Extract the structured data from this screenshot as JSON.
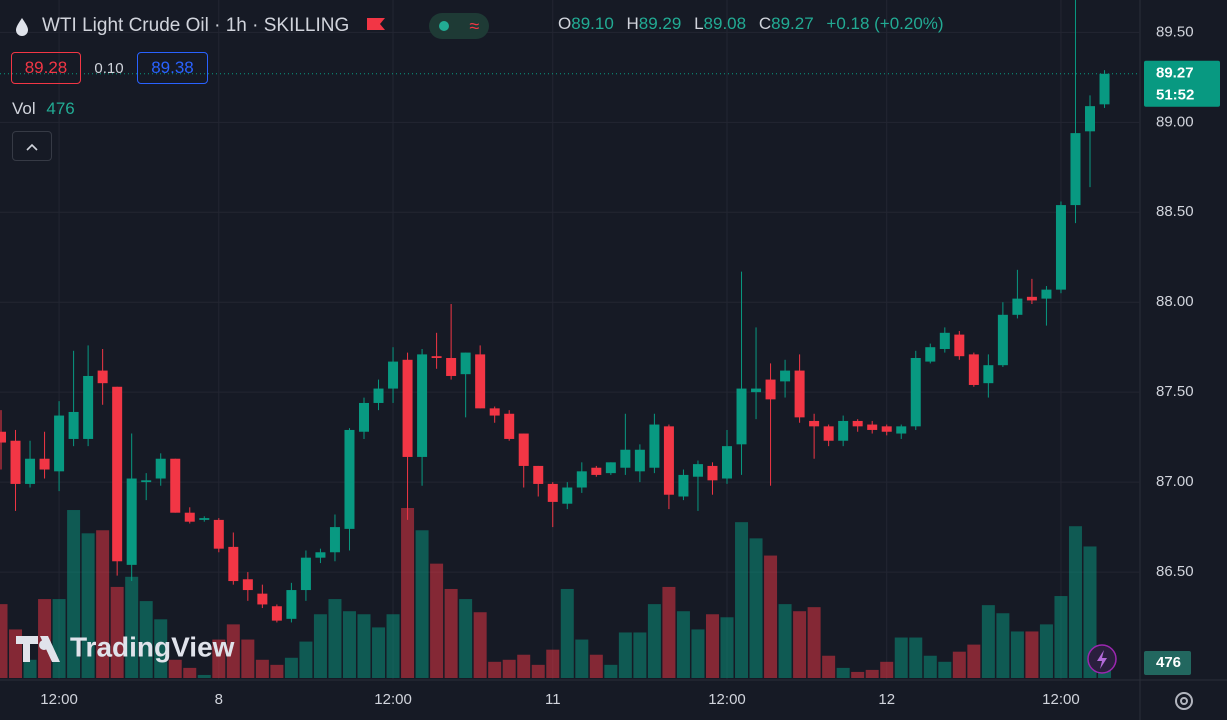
{
  "chart_data": {
    "type": "candlestick",
    "title": "WTI Light Crude Oil · 1h · SKILLING",
    "header": {
      "o_key": "O",
      "o": "89.10",
      "h_key": "H",
      "h": "89.29",
      "l_key": "L",
      "l": "89.08",
      "c_key": "C",
      "c": "89.27",
      "change": "+0.18 (+0.20%)"
    },
    "bid": "89.28",
    "spread": "0.10",
    "ask": "89.38",
    "volume_label": "Vol",
    "countdown": "51:52",
    "watermark": "TradingView",
    "up_color": "#089981",
    "down_color": "#f23645",
    "ylim": [
      85.9,
      89.68
    ],
    "yticks": [
      {
        "value": 86.5,
        "label": "86.50"
      },
      {
        "value": 87,
        "label": "87.00"
      },
      {
        "value": 87.5,
        "label": "87.50"
      },
      {
        "value": 88,
        "label": "88.00"
      },
      {
        "value": 88.5,
        "label": "88.50"
      },
      {
        "value": 89,
        "label": "89.00"
      },
      {
        "value": 89.5,
        "label": "89.50"
      }
    ],
    "grid": true,
    "categories": [
      null,
      null,
      null,
      null,
      "12:00",
      null,
      null,
      null,
      null,
      null,
      null,
      null,
      null,
      null,
      null,
      "8",
      null,
      null,
      null,
      null,
      null,
      null,
      null,
      null,
      null,
      null,
      null,
      "12:00",
      null,
      null,
      null,
      null,
      null,
      null,
      null,
      null,
      null,
      null,
      "11",
      null,
      null,
      null,
      null,
      null,
      null,
      null,
      null,
      null,
      null,
      null,
      "12:00",
      null,
      null,
      null,
      null,
      null,
      null,
      null,
      null,
      null,
      null,
      "12",
      null,
      null,
      null,
      null,
      null,
      null,
      null,
      null,
      null,
      null,
      null,
      "12:00",
      null,
      null,
      null
    ],
    "open": [
      87.28,
      87.23,
      86.99,
      87.13,
      87.06,
      87.24,
      87.24,
      87.62,
      87.53,
      86.54,
      87.0,
      87.02,
      87.13,
      86.83,
      86.79,
      86.79,
      86.64,
      86.46,
      86.38,
      86.31,
      86.24,
      86.4,
      86.58,
      86.61,
      86.74,
      87.28,
      87.44,
      87.52,
      87.68,
      87.14,
      87.7,
      87.69,
      87.6,
      87.71,
      87.41,
      87.38,
      87.27,
      87.09,
      86.99,
      86.88,
      86.97,
      87.08,
      87.05,
      87.08,
      87.06,
      87.08,
      87.31,
      86.92,
      87.03,
      87.09,
      87.02,
      87.21,
      87.5,
      87.57,
      87.56,
      87.62,
      87.34,
      87.31,
      87.23,
      87.34,
      87.32,
      87.31,
      87.27,
      87.31,
      87.67,
      87.74,
      87.82,
      87.71,
      87.55,
      87.65,
      87.93,
      88.03,
      88.02,
      88.07,
      88.54,
      88.95,
      89.1
    ],
    "high": [
      87.4,
      87.29,
      87.23,
      87.28,
      87.45,
      87.73,
      87.76,
      87.74,
      87.53,
      87.27,
      87.05,
      87.16,
      87.13,
      86.86,
      86.81,
      86.8,
      86.72,
      86.5,
      86.43,
      86.32,
      86.44,
      86.62,
      86.63,
      86.82,
      87.3,
      87.47,
      87.57,
      87.75,
      87.72,
      87.74,
      87.83,
      87.99,
      87.72,
      87.76,
      87.42,
      87.4,
      87.27,
      87.09,
      87.0,
      87.0,
      87.11,
      87.09,
      87.11,
      87.38,
      87.21,
      87.38,
      87.32,
      87.07,
      87.12,
      87.11,
      87.29,
      88.17,
      87.86,
      87.66,
      87.68,
      87.71,
      87.38,
      87.32,
      87.37,
      87.35,
      87.34,
      87.32,
      87.32,
      87.73,
      87.77,
      87.86,
      87.84,
      87.72,
      87.71,
      88.0,
      88.18,
      88.13,
      88.09,
      88.56,
      89.71,
      89.15,
      89.29
    ],
    "low": [
      87.07,
      86.84,
      86.97,
      87.02,
      86.95,
      87.2,
      87.2,
      87.43,
      86.48,
      86.45,
      86.9,
      86.98,
      86.83,
      86.77,
      86.78,
      86.61,
      86.43,
      86.34,
      86.3,
      86.22,
      86.22,
      86.34,
      86.55,
      86.56,
      86.62,
      87.24,
      87.4,
      87.44,
      86.79,
      86.98,
      87.63,
      87.57,
      87.36,
      87.41,
      87.33,
      87.23,
      86.97,
      86.92,
      86.75,
      86.85,
      86.94,
      87.03,
      87.04,
      87.04,
      87.0,
      87.05,
      86.85,
      86.9,
      86.84,
      86.93,
      86.99,
      87.04,
      87.35,
      86.98,
      87.47,
      87.33,
      87.13,
      87.2,
      87.2,
      87.28,
      87.27,
      87.26,
      87.24,
      87.29,
      87.66,
      87.72,
      87.68,
      87.53,
      87.47,
      87.64,
      87.91,
      87.99,
      87.87,
      88.05,
      88.44,
      88.64,
      89.08
    ],
    "close": [
      87.22,
      86.99,
      87.13,
      87.07,
      87.37,
      87.39,
      87.59,
      87.55,
      86.56,
      87.02,
      87.01,
      87.13,
      86.83,
      86.78,
      86.8,
      86.63,
      86.45,
      86.4,
      86.32,
      86.23,
      86.4,
      86.58,
      86.61,
      86.75,
      87.29,
      87.44,
      87.52,
      87.67,
      87.14,
      87.71,
      87.69,
      87.59,
      87.72,
      87.41,
      87.37,
      87.24,
      87.09,
      86.99,
      86.89,
      86.97,
      87.06,
      87.04,
      87.11,
      87.18,
      87.18,
      87.32,
      86.93,
      87.04,
      87.1,
      87.01,
      87.2,
      87.52,
      87.52,
      87.46,
      87.62,
      87.36,
      87.31,
      87.23,
      87.34,
      87.31,
      87.29,
      87.28,
      87.31,
      87.69,
      87.75,
      87.83,
      87.7,
      87.54,
      87.65,
      87.93,
      88.02,
      88.01,
      88.07,
      88.54,
      88.94,
      89.09,
      89.27
    ],
    "volume": [
      2336,
      1536,
      576,
      2496,
      2496,
      5312,
      4576,
      4672,
      2880,
      3200,
      2432,
      1856,
      576,
      320,
      96,
      1216,
      1696,
      1216,
      576,
      416,
      640,
      1152,
      2016,
      2496,
      2112,
      2016,
      1600,
      2016,
      5376,
      4672,
      3616,
      2816,
      2496,
      2080,
      512,
      576,
      736,
      416,
      896,
      2816,
      1216,
      736,
      416,
      1440,
      1440,
      2336,
      2880,
      2112,
      1536,
      2016,
      1920,
      4928,
      4416,
      3872,
      2336,
      2112,
      2240,
      704,
      320,
      192,
      256,
      512,
      1280,
      1280,
      704,
      512,
      832,
      1056,
      2304,
      2048,
      1472,
      1472,
      1696,
      2592,
      4800,
      4160,
      476
    ]
  }
}
